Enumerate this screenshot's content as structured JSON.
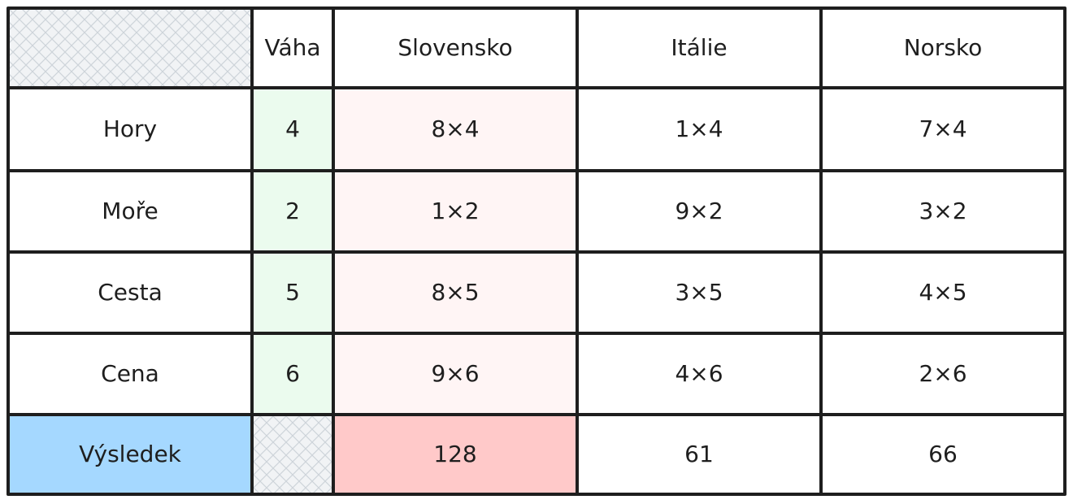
{
  "table": {
    "columns": [
      "Váha",
      "Slovensko",
      "Itálie",
      "Norsko"
    ],
    "rows": [
      {
        "label": "Hory",
        "weight": 4,
        "cells": [
          "8×4",
          "1×4",
          "7×4"
        ]
      },
      {
        "label": "Moře",
        "weight": 2,
        "cells": [
          "1×2",
          "9×2",
          "3×2"
        ]
      },
      {
        "label": "Cesta",
        "weight": 5,
        "cells": [
          "8×5",
          "3×5",
          "4×5"
        ]
      },
      {
        "label": "Cena",
        "weight": 6,
        "cells": [
          "9×6",
          "4×6",
          "2×6"
        ]
      }
    ],
    "result": {
      "label": "Výsledek",
      "cells": [
        128,
        61,
        66
      ]
    }
  }
}
